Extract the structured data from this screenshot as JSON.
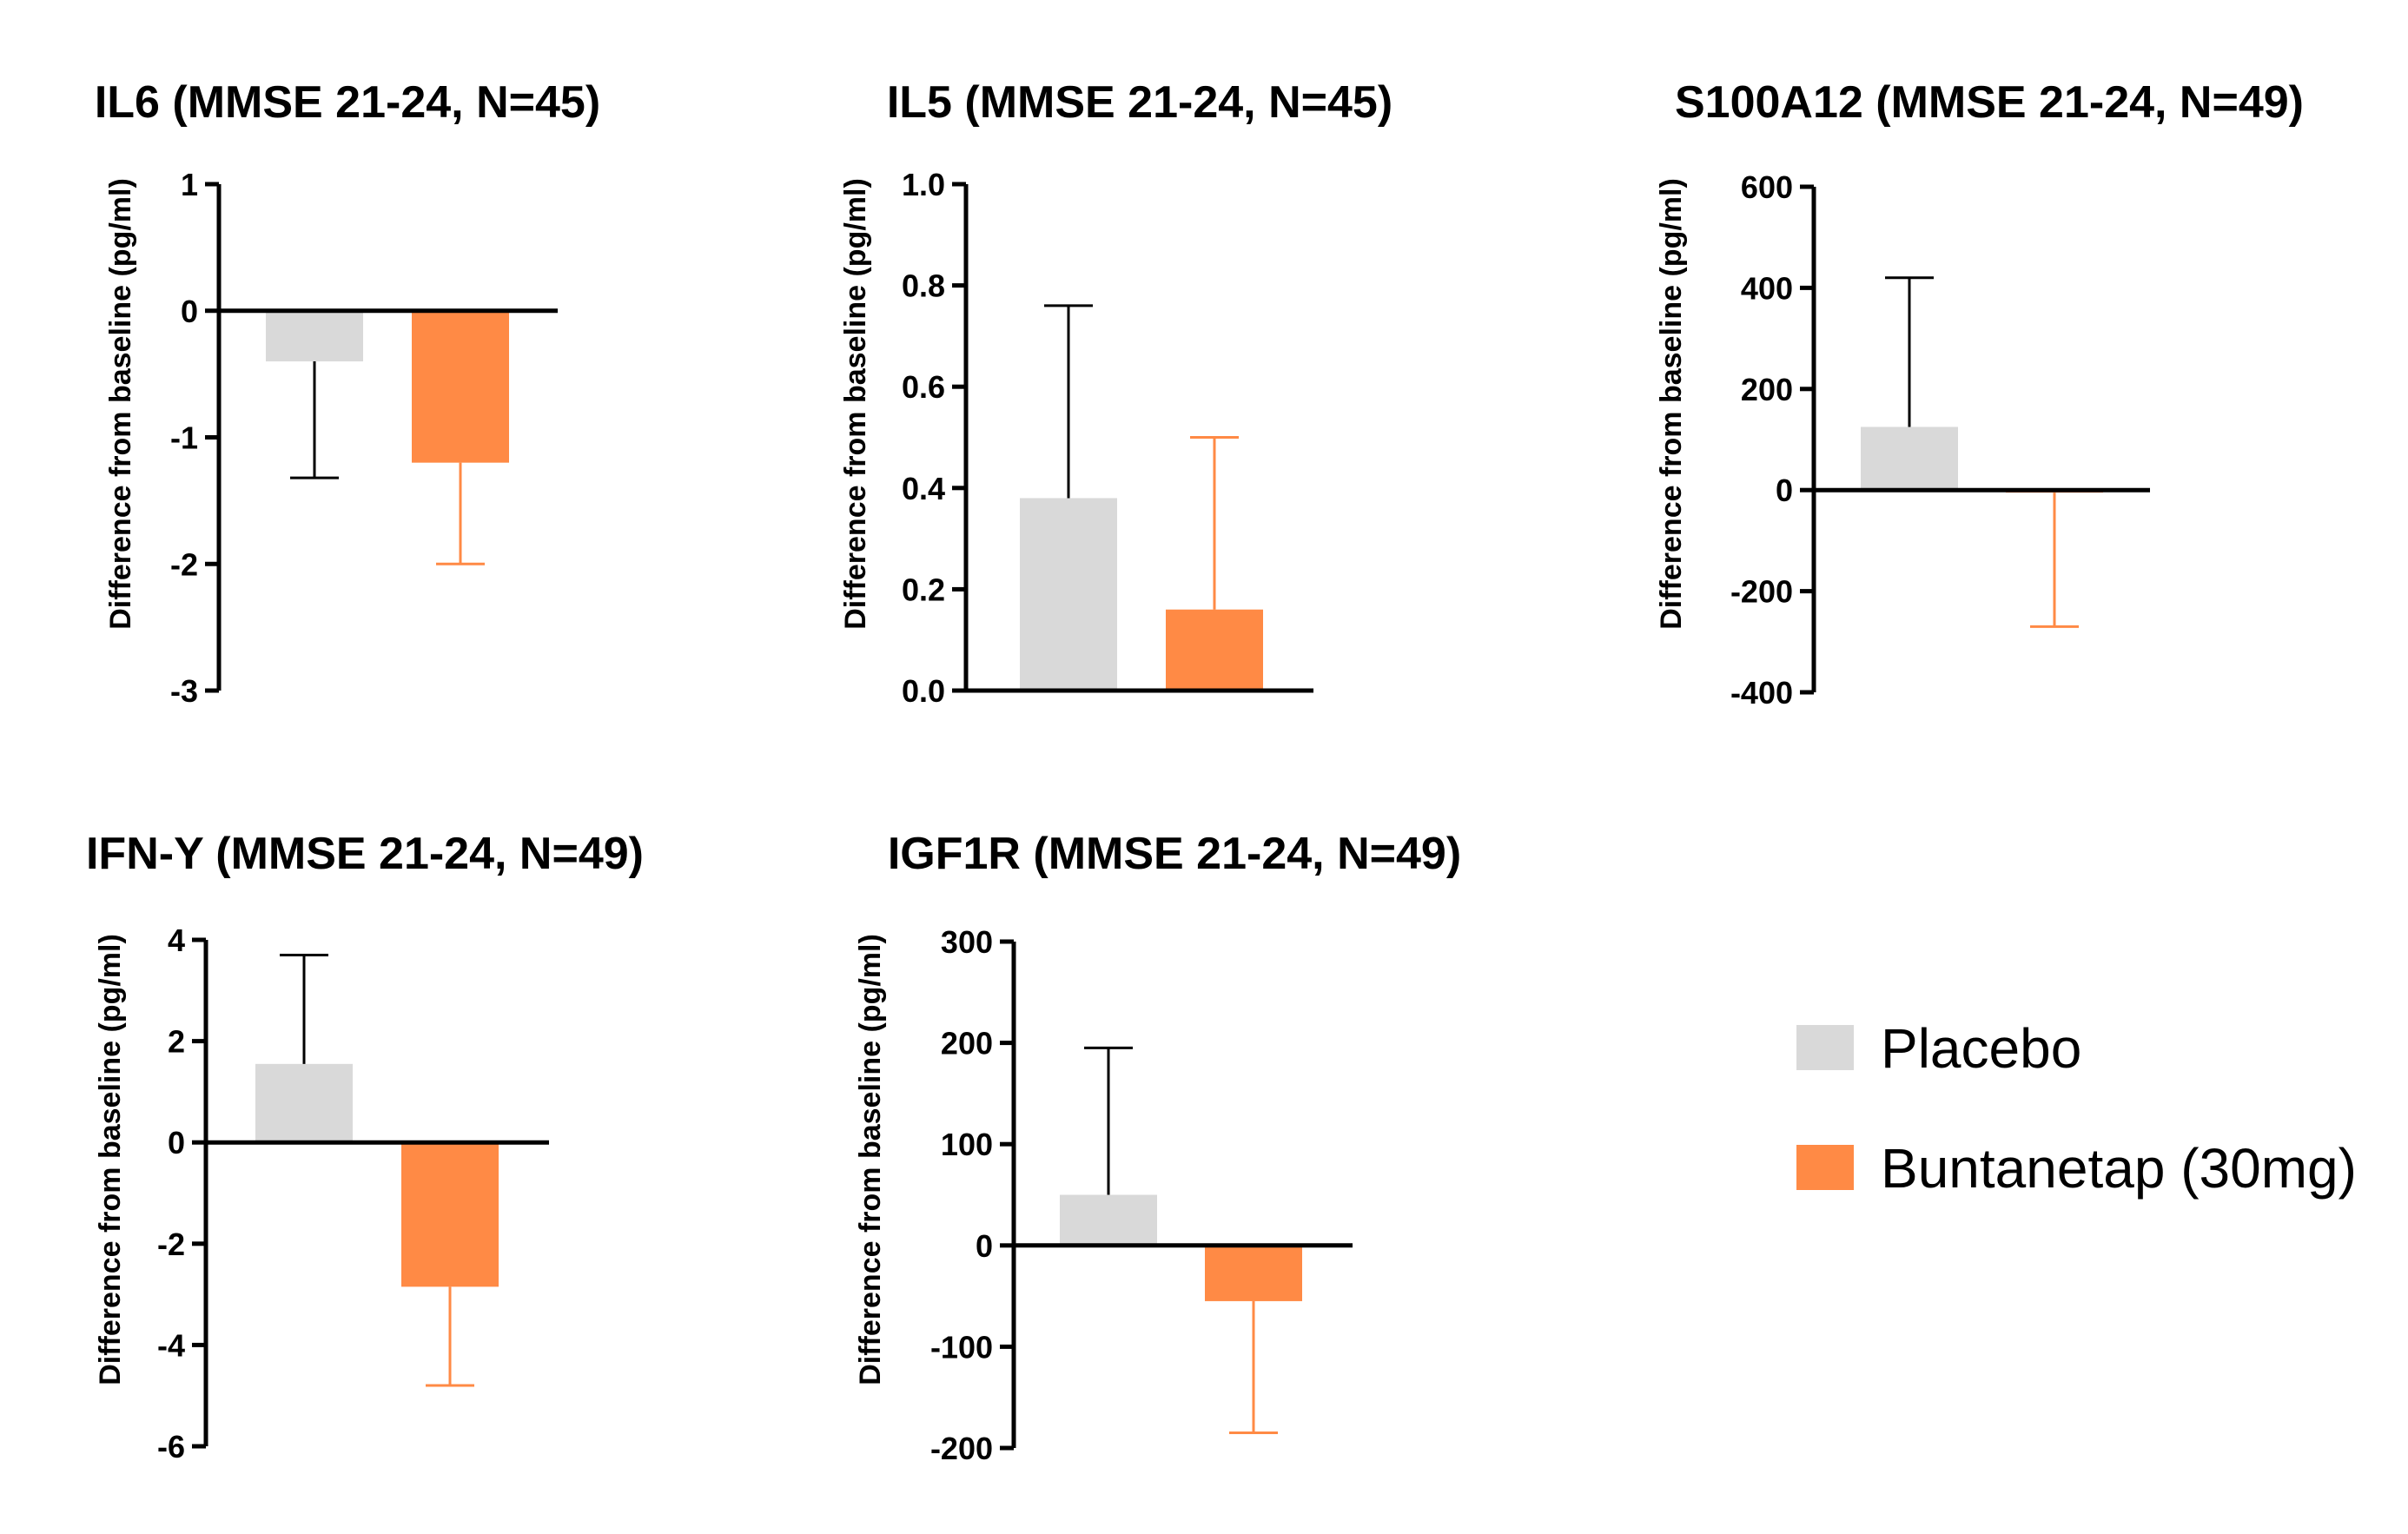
{
  "chart_data": [
    {
      "type": "bar",
      "title": "IL6 (MMSE 21-24, N=45)",
      "xlabel": "",
      "ylabel": "Difference from baseline  (pg/ml)",
      "ylim": [
        -3,
        1
      ],
      "yticks": [
        1,
        0,
        -1,
        -2,
        -3
      ],
      "ytick_labels": [
        "1",
        "0",
        "-1",
        "-2",
        "-3"
      ],
      "categories": [
        "Placebo",
        "Buntanetap (30mg)"
      ],
      "values": [
        -0.4,
        -1.2
      ],
      "errors": [
        0.92,
        0.8
      ]
    },
    {
      "type": "bar",
      "title": "IL5 (MMSE 21-24, N=45)",
      "xlabel": "",
      "ylabel": "Difference from baseline  (pg/ml)",
      "ylim": [
        0,
        1
      ],
      "yticks": [
        1.0,
        0.8,
        0.6,
        0.4,
        0.2,
        0.0
      ],
      "ytick_labels": [
        "1.0",
        "0.8",
        "0.6",
        "0.4",
        "0.2",
        "0.0"
      ],
      "categories": [
        "Placebo",
        "Buntanetap (30mg)"
      ],
      "values": [
        0.38,
        0.16
      ],
      "errors": [
        0.38,
        0.34
      ]
    },
    {
      "type": "bar",
      "title": "S100A12 (MMSE 21-24, N=49)",
      "xlabel": "",
      "ylabel": "Difference from baseline  (pg/ml)",
      "ylim": [
        -400,
        600
      ],
      "yticks": [
        600,
        400,
        200,
        0,
        -200,
        -400
      ],
      "ytick_labels": [
        "600",
        "400",
        "200",
        "0",
        "-200",
        "-400"
      ],
      "categories": [
        "Placebo",
        "Buntanetap (30mg)"
      ],
      "values": [
        125,
        -5
      ],
      "errors": [
        295,
        265
      ]
    },
    {
      "type": "bar",
      "title": "IFN-Y (MMSE 21-24, N=49)",
      "xlabel": "",
      "ylabel": "Difference from baseline  (pg/ml)",
      "ylim": [
        -6,
        4
      ],
      "yticks": [
        4,
        2,
        0,
        -2,
        -4,
        -6
      ],
      "ytick_labels": [
        "4",
        "2",
        "0",
        "-2",
        "-4",
        "-6"
      ],
      "categories": [
        "Placebo",
        "Buntanetap (30mg)"
      ],
      "values": [
        1.55,
        -2.85
      ],
      "errors": [
        2.15,
        1.95
      ]
    },
    {
      "type": "bar",
      "title": "IGF1R (MMSE 21-24, N=49)",
      "xlabel": "",
      "ylabel": "Difference from baseline  (pg/ml)",
      "ylim": [
        -200,
        300
      ],
      "yticks": [
        300,
        200,
        100,
        0,
        -100,
        -200
      ],
      "ytick_labels": [
        "300",
        "200",
        "100",
        "0",
        "-100",
        "-200"
      ],
      "categories": [
        "Placebo",
        "Buntanetap (30mg)"
      ],
      "values": [
        50,
        -55
      ],
      "errors": [
        145,
        130
      ]
    }
  ],
  "legend": {
    "items": [
      {
        "label": "Placebo",
        "color": "#d9d9d9"
      },
      {
        "label": "Buntanetap (30mg)",
        "color": "#ff8a45"
      }
    ]
  },
  "colors": {
    "placebo": "#d9d9d9",
    "treatment": "#ff8a45",
    "axis": "#000000",
    "placebo_error": "#000000",
    "treatment_error": "#ff8a45"
  }
}
